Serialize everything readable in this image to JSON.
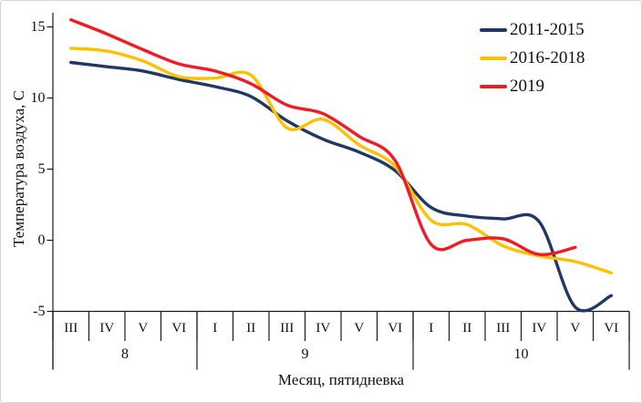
{
  "chart_data": {
    "type": "line",
    "smooth": true,
    "grid": false,
    "title": "",
    "xlabel": "Месяц, пятидневка",
    "ylabel": "Температура воздуха, С",
    "ylim": [
      -5,
      15
    ],
    "y_ticks": [
      {
        "label": "15",
        "value": 15
      },
      {
        "label": "10",
        "value": 10
      },
      {
        "label": "5",
        "value": 5
      },
      {
        "label": "0",
        "value": 0
      },
      {
        "label": "-5",
        "value": -5
      }
    ],
    "x_categories": [
      "III",
      "IV",
      "V",
      "VI",
      "I",
      "II",
      "III",
      "IV",
      "V",
      "VI",
      "I",
      "II",
      "III",
      "IV",
      "V",
      "VI"
    ],
    "month_groups": [
      {
        "label": "8",
        "cells": 4
      },
      {
        "label": "9",
        "cells": 6
      },
      {
        "label": "10",
        "cells": 6
      }
    ],
    "legend_position": "top-right",
    "series": [
      {
        "name": "2011-2015",
        "color": "#1F3864",
        "values": [
          12.5,
          12.2,
          11.9,
          11.3,
          10.8,
          10.1,
          8.4,
          7.1,
          6.2,
          4.9,
          2.3,
          1.7,
          1.5,
          1.3,
          -4.7,
          -3.9
        ]
      },
      {
        "name": "2016-2018",
        "color": "#FFC000",
        "values": [
          13.5,
          13.3,
          12.6,
          11.5,
          11.4,
          11.6,
          7.9,
          8.5,
          6.7,
          5.2,
          1.4,
          1.1,
          -0.4,
          -1.1,
          -1.5,
          -2.3
        ]
      },
      {
        "name": "2019",
        "color": "#EE1C25",
        "values": [
          15.5,
          14.5,
          13.4,
          12.4,
          11.9,
          11.0,
          9.5,
          8.9,
          7.3,
          5.6,
          -0.3,
          0.0,
          0.1,
          -1.0,
          -0.5
        ]
      }
    ]
  }
}
